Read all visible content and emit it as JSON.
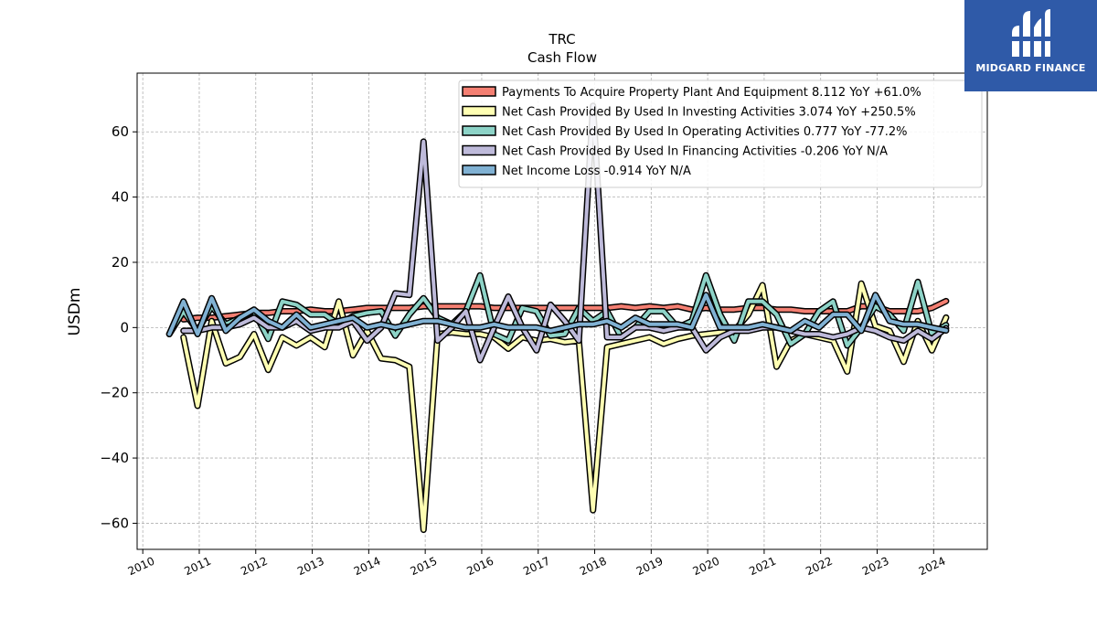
{
  "logo": {
    "text": "MIDGARD FINANCE",
    "bg": "#2f5aa8"
  },
  "chart_data": {
    "type": "line",
    "title": "TRC",
    "subtitle": "Cash Flow",
    "ylabel": "USDm",
    "ylim": [
      -68,
      78
    ],
    "xlim": [
      2009.9,
      2024.95
    ],
    "yticks": [
      -60,
      -40,
      -20,
      0,
      20,
      40,
      60
    ],
    "ytick_labels": [
      "−60",
      "−40",
      "−20",
      "0",
      "20",
      "40",
      "60"
    ],
    "xticks": [
      2010,
      2011,
      2012,
      2013,
      2014,
      2015,
      2016,
      2017,
      2018,
      2019,
      2020,
      2021,
      2022,
      2023,
      2024
    ],
    "grid": true,
    "legend_position": "top-right",
    "series": [
      {
        "name": "Payments To Acquire Property Plant And Equipment",
        "legend": "Payments To Acquire Property Plant And Equipment  8.112 YoY +61.0%",
        "color": "#f47f72",
        "points": [
          [
            2010.72,
            2.5
          ],
          [
            2010.97,
            3
          ],
          [
            2011.22,
            3
          ],
          [
            2011.47,
            3.5
          ],
          [
            2011.72,
            4
          ],
          [
            2011.97,
            4.5
          ],
          [
            2012.22,
            4.5
          ],
          [
            2012.47,
            5
          ],
          [
            2012.72,
            5
          ],
          [
            2012.97,
            5.5
          ],
          [
            2013.22,
            5
          ],
          [
            2013.47,
            5
          ],
          [
            2013.72,
            5.5
          ],
          [
            2013.97,
            6
          ],
          [
            2014.22,
            6
          ],
          [
            2014.47,
            6
          ],
          [
            2014.72,
            6
          ],
          [
            2014.97,
            6.5
          ],
          [
            2015.22,
            6.5
          ],
          [
            2015.47,
            6.5
          ],
          [
            2015.72,
            6.5
          ],
          [
            2015.97,
            6.5
          ],
          [
            2016.22,
            6
          ],
          [
            2016.47,
            6
          ],
          [
            2016.72,
            6
          ],
          [
            2016.97,
            6
          ],
          [
            2017.22,
            6
          ],
          [
            2017.47,
            6
          ],
          [
            2017.72,
            6
          ],
          [
            2017.97,
            6
          ],
          [
            2018.22,
            6
          ],
          [
            2018.47,
            6.5
          ],
          [
            2018.72,
            6
          ],
          [
            2018.97,
            6.5
          ],
          [
            2019.22,
            6
          ],
          [
            2019.47,
            6.5
          ],
          [
            2019.72,
            5.5
          ],
          [
            2019.97,
            6
          ],
          [
            2020.22,
            5.5
          ],
          [
            2020.47,
            5.5
          ],
          [
            2020.72,
            6
          ],
          [
            2020.97,
            6
          ],
          [
            2021.22,
            5.5
          ],
          [
            2021.47,
            5.5
          ],
          [
            2021.72,
            5
          ],
          [
            2021.97,
            5
          ],
          [
            2022.22,
            5
          ],
          [
            2022.47,
            5
          ],
          [
            2022.72,
            6.5
          ],
          [
            2022.97,
            6.5
          ],
          [
            2023.22,
            5
          ],
          [
            2023.47,
            5
          ],
          [
            2023.72,
            5
          ],
          [
            2023.97,
            6
          ],
          [
            2024.22,
            8.112
          ]
        ]
      },
      {
        "name": "Net Cash Provided By Used In Investing Activities",
        "legend": "Net Cash Provided By Used In Investing Activities  3.074 YoY +250.5%",
        "color": "#ffffb3",
        "points": [
          [
            2010.72,
            -3
          ],
          [
            2010.97,
            -24
          ],
          [
            2011.22,
            2
          ],
          [
            2011.47,
            -11
          ],
          [
            2011.72,
            -9
          ],
          [
            2011.97,
            -2
          ],
          [
            2012.22,
            -13
          ],
          [
            2012.47,
            -3
          ],
          [
            2012.72,
            -5.5
          ],
          [
            2012.97,
            -3
          ],
          [
            2013.22,
            -6
          ],
          [
            2013.47,
            8
          ],
          [
            2013.72,
            -8.5
          ],
          [
            2013.97,
            -1
          ],
          [
            2014.22,
            -9.5
          ],
          [
            2014.47,
            -10
          ],
          [
            2014.72,
            -12
          ],
          [
            2014.97,
            -62
          ],
          [
            2015.22,
            -2
          ],
          [
            2015.47,
            -1.5
          ],
          [
            2015.72,
            -2
          ],
          [
            2015.97,
            -2
          ],
          [
            2016.22,
            -3
          ],
          [
            2016.47,
            -6.5
          ],
          [
            2016.72,
            -3
          ],
          [
            2016.97,
            -4
          ],
          [
            2017.22,
            -3.5
          ],
          [
            2017.47,
            -4.5
          ],
          [
            2017.72,
            -4
          ],
          [
            2017.97,
            -56
          ],
          [
            2018.22,
            -6
          ],
          [
            2018.47,
            -5
          ],
          [
            2018.72,
            -4
          ],
          [
            2018.97,
            -3
          ],
          [
            2019.22,
            -5
          ],
          [
            2019.47,
            -3.5
          ],
          [
            2019.72,
            -2.5
          ],
          [
            2019.97,
            -2
          ],
          [
            2020.22,
            -1.5
          ],
          [
            2020.47,
            -1
          ],
          [
            2020.72,
            4
          ],
          [
            2020.97,
            13
          ],
          [
            2021.22,
            -12
          ],
          [
            2021.47,
            -4
          ],
          [
            2021.72,
            -2
          ],
          [
            2021.97,
            -3
          ],
          [
            2022.22,
            -4
          ],
          [
            2022.47,
            -13.5
          ],
          [
            2022.72,
            13.5
          ],
          [
            2022.97,
            0.5
          ],
          [
            2023.22,
            -1
          ],
          [
            2023.47,
            -10.5
          ],
          [
            2023.72,
            2
          ],
          [
            2023.97,
            -7
          ],
          [
            2024.22,
            3.074
          ]
        ]
      },
      {
        "name": "Net Cash Provided By Used In Operating Activities",
        "legend": "Net Cash Provided By Used In Operating Activities  0.777 YoY -77.2%",
        "color": "#8dd3c7",
        "points": [
          [
            2010.47,
            -2
          ],
          [
            2010.72,
            5
          ],
          [
            2010.97,
            -1
          ],
          [
            2011.22,
            6.5
          ],
          [
            2011.47,
            1
          ],
          [
            2011.72,
            3
          ],
          [
            2011.97,
            5
          ],
          [
            2012.22,
            -3.5
          ],
          [
            2012.47,
            8
          ],
          [
            2012.72,
            7
          ],
          [
            2012.97,
            4
          ],
          [
            2013.22,
            4
          ],
          [
            2013.47,
            1
          ],
          [
            2013.72,
            3.5
          ],
          [
            2013.97,
            4.5
          ],
          [
            2014.22,
            5
          ],
          [
            2014.47,
            -2.5
          ],
          [
            2014.72,
            4
          ],
          [
            2014.97,
            9
          ],
          [
            2015.22,
            3
          ],
          [
            2015.47,
            1
          ],
          [
            2015.72,
            5
          ],
          [
            2015.97,
            16
          ],
          [
            2016.22,
            -2
          ],
          [
            2016.47,
            -4
          ],
          [
            2016.72,
            6
          ],
          [
            2016.97,
            5
          ],
          [
            2017.22,
            -2.5
          ],
          [
            2017.47,
            -2
          ],
          [
            2017.72,
            6
          ],
          [
            2017.97,
            2
          ],
          [
            2018.22,
            5
          ],
          [
            2018.47,
            -3
          ],
          [
            2018.72,
            0
          ],
          [
            2018.97,
            5
          ],
          [
            2019.22,
            5
          ],
          [
            2019.47,
            0
          ],
          [
            2019.72,
            2
          ],
          [
            2019.97,
            16
          ],
          [
            2020.22,
            4
          ],
          [
            2020.47,
            -4
          ],
          [
            2020.72,
            8
          ],
          [
            2020.97,
            8
          ],
          [
            2021.22,
            4
          ],
          [
            2021.47,
            -5
          ],
          [
            2021.72,
            -2
          ],
          [
            2021.97,
            5
          ],
          [
            2022.22,
            8
          ],
          [
            2022.47,
            -5.5
          ],
          [
            2022.72,
            0
          ],
          [
            2022.97,
            6.5
          ],
          [
            2023.22,
            4
          ],
          [
            2023.47,
            -1
          ],
          [
            2023.72,
            14
          ],
          [
            2023.97,
            -2
          ],
          [
            2024.22,
            0.777
          ]
        ]
      },
      {
        "name": "Net Cash Provided By Used In Financing Activities",
        "legend": "Net Cash Provided By Used In Financing Activities  -0.206 YoY N/A",
        "color": "#bebada",
        "points": [
          [
            2010.72,
            -1
          ],
          [
            2010.97,
            -1
          ],
          [
            2011.22,
            0
          ],
          [
            2011.47,
            0
          ],
          [
            2011.72,
            1
          ],
          [
            2011.97,
            3
          ],
          [
            2012.22,
            0
          ],
          [
            2012.47,
            0
          ],
          [
            2012.72,
            2
          ],
          [
            2012.97,
            -1
          ],
          [
            2013.22,
            0
          ],
          [
            2013.47,
            0
          ],
          [
            2013.72,
            2
          ],
          [
            2013.97,
            -4
          ],
          [
            2014.22,
            0
          ],
          [
            2014.47,
            10.5
          ],
          [
            2014.72,
            10
          ],
          [
            2014.97,
            57
          ],
          [
            2015.22,
            -4
          ],
          [
            2015.47,
            0
          ],
          [
            2015.72,
            5
          ],
          [
            2015.97,
            -10
          ],
          [
            2016.22,
            0
          ],
          [
            2016.47,
            9.5
          ],
          [
            2016.72,
            0
          ],
          [
            2016.97,
            -7
          ],
          [
            2017.22,
            7
          ],
          [
            2017.47,
            2
          ],
          [
            2017.72,
            -4
          ],
          [
            2017.97,
            68
          ],
          [
            2018.22,
            -3
          ],
          [
            2018.47,
            -3
          ],
          [
            2018.72,
            0
          ],
          [
            2018.97,
            0
          ],
          [
            2019.22,
            -1
          ],
          [
            2019.47,
            0
          ],
          [
            2019.72,
            0
          ],
          [
            2019.97,
            -7
          ],
          [
            2020.22,
            -3
          ],
          [
            2020.47,
            -1
          ],
          [
            2020.72,
            -1
          ],
          [
            2020.97,
            0
          ],
          [
            2021.22,
            0
          ],
          [
            2021.47,
            -1
          ],
          [
            2021.72,
            -2
          ],
          [
            2021.97,
            -2
          ],
          [
            2022.22,
            -3
          ],
          [
            2022.47,
            -2
          ],
          [
            2022.72,
            0
          ],
          [
            2022.97,
            -1
          ],
          [
            2023.22,
            -3
          ],
          [
            2023.47,
            -4
          ],
          [
            2023.72,
            -1
          ],
          [
            2023.97,
            -3.5
          ],
          [
            2024.22,
            -0.206
          ]
        ]
      },
      {
        "name": "Net Income Loss",
        "legend": "Net Income Loss  -0.914 YoY N/A",
        "color": "#80b1d3",
        "points": [
          [
            2010.47,
            -2
          ],
          [
            2010.72,
            8
          ],
          [
            2010.97,
            -2
          ],
          [
            2011.22,
            9
          ],
          [
            2011.47,
            -1
          ],
          [
            2011.72,
            3
          ],
          [
            2011.97,
            5.5
          ],
          [
            2012.22,
            2
          ],
          [
            2012.47,
            0
          ],
          [
            2012.72,
            4
          ],
          [
            2012.97,
            0
          ],
          [
            2013.22,
            1
          ],
          [
            2013.47,
            2
          ],
          [
            2013.72,
            3
          ],
          [
            2013.97,
            0
          ],
          [
            2014.22,
            1
          ],
          [
            2014.47,
            0
          ],
          [
            2014.72,
            1
          ],
          [
            2014.97,
            2
          ],
          [
            2015.22,
            2
          ],
          [
            2015.47,
            1
          ],
          [
            2015.72,
            0
          ],
          [
            2015.97,
            0
          ],
          [
            2016.22,
            1
          ],
          [
            2016.47,
            0
          ],
          [
            2016.72,
            0
          ],
          [
            2016.97,
            0
          ],
          [
            2017.22,
            -1
          ],
          [
            2017.47,
            0
          ],
          [
            2017.72,
            1
          ],
          [
            2017.97,
            1
          ],
          [
            2018.22,
            2
          ],
          [
            2018.47,
            0
          ],
          [
            2018.72,
            3
          ],
          [
            2018.97,
            1
          ],
          [
            2019.22,
            1
          ],
          [
            2019.47,
            1
          ],
          [
            2019.72,
            0
          ],
          [
            2019.97,
            10
          ],
          [
            2020.22,
            0
          ],
          [
            2020.47,
            0
          ],
          [
            2020.72,
            0
          ],
          [
            2020.97,
            1
          ],
          [
            2021.22,
            0
          ],
          [
            2021.47,
            -1
          ],
          [
            2021.72,
            2
          ],
          [
            2021.97,
            0
          ],
          [
            2022.22,
            4
          ],
          [
            2022.47,
            4
          ],
          [
            2022.72,
            -1
          ],
          [
            2022.97,
            10
          ],
          [
            2023.22,
            2
          ],
          [
            2023.47,
            1
          ],
          [
            2023.72,
            1
          ],
          [
            2023.97,
            0
          ],
          [
            2024.22,
            -0.914
          ]
        ]
      }
    ]
  }
}
